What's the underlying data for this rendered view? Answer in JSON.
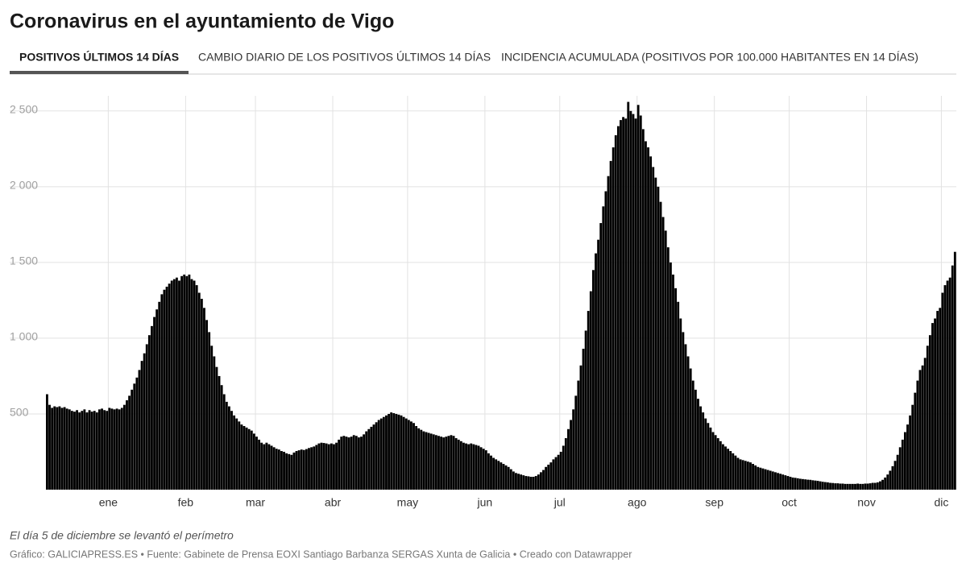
{
  "tabs": [
    "POSITIVOS ÚLTIMOS 14 DÍAS",
    "CAMBIO DIARIO DE LOS POSITIVOS ÚLTIMOS 14 DÍAS",
    "INCIDENCIA ACUMULADA (POSITIVOS POR 100.000 HABITANTES EN 14 DÍAS)"
  ],
  "chart_data": {
    "type": "bar",
    "title": "Coronavirus en el ayuntamiento de Vigo",
    "note": "El día 5 de diciembre se levantó el perímetro",
    "source": "Gráfico: GALICIAPRESS.ES • Fuente: Gabinete de Prensa EOXI Santiago Barbanza SERGAS Xunta de Galicia • Creado con Datawrapper",
    "color": "#000000",
    "grid": true,
    "ylim": [
      0,
      2600
    ],
    "yticks": [
      {
        "value": 500,
        "label": "500"
      },
      {
        "value": 1000,
        "label": "1 000"
      },
      {
        "value": 1500,
        "label": "1 500"
      },
      {
        "value": 2000,
        "label": "2 000"
      },
      {
        "value": 2500,
        "label": "2 500"
      }
    ],
    "categories": [
      null,
      null,
      null,
      null,
      null,
      null,
      null,
      null,
      null,
      null,
      null,
      null,
      null,
      null,
      null,
      null,
      null,
      null,
      null,
      null,
      null,
      null,
      null,
      null,
      null,
      "ene",
      null,
      null,
      null,
      null,
      null,
      null,
      null,
      null,
      null,
      null,
      null,
      null,
      null,
      null,
      null,
      null,
      null,
      null,
      null,
      null,
      null,
      null,
      null,
      null,
      null,
      null,
      null,
      null,
      null,
      null,
      "feb",
      null,
      null,
      null,
      null,
      null,
      null,
      null,
      null,
      null,
      null,
      null,
      null,
      null,
      null,
      null,
      null,
      null,
      null,
      null,
      null,
      null,
      null,
      null,
      null,
      null,
      null,
      null,
      "mar",
      null,
      null,
      null,
      null,
      null,
      null,
      null,
      null,
      null,
      null,
      null,
      null,
      null,
      null,
      null,
      null,
      null,
      null,
      null,
      null,
      null,
      null,
      null,
      null,
      null,
      null,
      null,
      null,
      null,
      null,
      "abr",
      null,
      null,
      null,
      null,
      null,
      null,
      null,
      null,
      null,
      null,
      null,
      null,
      null,
      null,
      null,
      null,
      null,
      null,
      null,
      null,
      null,
      null,
      null,
      null,
      null,
      null,
      null,
      null,
      null,
      "may",
      null,
      null,
      null,
      null,
      null,
      null,
      null,
      null,
      null,
      null,
      null,
      null,
      null,
      null,
      null,
      null,
      null,
      null,
      null,
      null,
      null,
      null,
      null,
      null,
      null,
      null,
      null,
      null,
      null,
      null,
      "jun",
      null,
      null,
      null,
      null,
      null,
      null,
      null,
      null,
      null,
      null,
      null,
      null,
      null,
      null,
      null,
      null,
      null,
      null,
      null,
      null,
      null,
      null,
      null,
      null,
      null,
      null,
      null,
      null,
      null,
      "jul",
      null,
      null,
      null,
      null,
      null,
      null,
      null,
      null,
      null,
      null,
      null,
      null,
      null,
      null,
      null,
      null,
      null,
      null,
      null,
      null,
      null,
      null,
      null,
      null,
      null,
      null,
      null,
      null,
      null,
      null,
      "ago",
      null,
      null,
      null,
      null,
      null,
      null,
      null,
      null,
      null,
      null,
      null,
      null,
      null,
      null,
      null,
      null,
      null,
      null,
      null,
      null,
      null,
      null,
      null,
      null,
      null,
      null,
      null,
      null,
      null,
      null,
      "sep",
      null,
      null,
      null,
      null,
      null,
      null,
      null,
      null,
      null,
      null,
      null,
      null,
      null,
      null,
      null,
      null,
      null,
      null,
      null,
      null,
      null,
      null,
      null,
      null,
      null,
      null,
      null,
      null,
      null,
      "oct",
      null,
      null,
      null,
      null,
      null,
      null,
      null,
      null,
      null,
      null,
      null,
      null,
      null,
      null,
      null,
      null,
      null,
      null,
      null,
      null,
      null,
      null,
      null,
      null,
      null,
      null,
      null,
      null,
      null,
      null,
      "nov",
      null,
      null,
      null,
      null,
      null,
      null,
      null,
      null,
      null,
      null,
      null,
      null,
      null,
      null,
      null,
      null,
      null,
      null,
      null,
      null,
      null,
      null,
      null,
      null,
      null,
      null,
      null,
      null,
      null,
      "dic",
      null,
      null,
      null,
      null,
      null
    ],
    "values": [
      630,
      560,
      540,
      550,
      545,
      550,
      540,
      545,
      535,
      530,
      520,
      515,
      525,
      510,
      520,
      530,
      510,
      525,
      515,
      520,
      510,
      530,
      535,
      525,
      520,
      540,
      535,
      530,
      535,
      530,
      540,
      560,
      590,
      620,
      660,
      700,
      740,
      790,
      850,
      900,
      960,
      1020,
      1080,
      1140,
      1190,
      1240,
      1290,
      1320,
      1340,
      1360,
      1380,
      1390,
      1400,
      1380,
      1410,
      1420,
      1410,
      1420,
      1390,
      1380,
      1350,
      1300,
      1260,
      1200,
      1120,
      1040,
      950,
      880,
      810,
      750,
      690,
      630,
      580,
      550,
      520,
      490,
      470,
      450,
      430,
      420,
      410,
      400,
      390,
      370,
      350,
      330,
      310,
      300,
      310,
      300,
      290,
      280,
      270,
      265,
      255,
      250,
      240,
      235,
      230,
      245,
      255,
      260,
      265,
      262,
      268,
      275,
      280,
      285,
      295,
      305,
      310,
      308,
      305,
      300,
      305,
      300,
      310,
      330,
      350,
      355,
      350,
      345,
      350,
      360,
      355,
      345,
      350,
      365,
      385,
      400,
      415,
      430,
      445,
      460,
      470,
      480,
      490,
      500,
      510,
      505,
      500,
      495,
      490,
      480,
      470,
      460,
      450,
      440,
      420,
      405,
      395,
      385,
      380,
      375,
      370,
      365,
      360,
      355,
      350,
      345,
      350,
      355,
      360,
      355,
      340,
      330,
      320,
      310,
      305,
      300,
      305,
      300,
      295,
      290,
      280,
      270,
      260,
      240,
      225,
      210,
      200,
      190,
      180,
      170,
      160,
      150,
      135,
      120,
      110,
      105,
      100,
      95,
      90,
      88,
      85,
      85,
      90,
      100,
      115,
      130,
      150,
      165,
      180,
      200,
      215,
      230,
      250,
      290,
      340,
      400,
      460,
      530,
      620,
      720,
      820,
      930,
      1050,
      1180,
      1310,
      1450,
      1560,
      1650,
      1760,
      1870,
      1970,
      2070,
      2170,
      2260,
      2340,
      2400,
      2440,
      2460,
      2450,
      2560,
      2500,
      2480,
      2450,
      2540,
      2470,
      2380,
      2300,
      2260,
      2200,
      2130,
      2060,
      2000,
      1900,
      1800,
      1710,
      1600,
      1500,
      1420,
      1330,
      1240,
      1130,
      1040,
      960,
      880,
      800,
      720,
      660,
      600,
      550,
      510,
      470,
      440,
      410,
      380,
      360,
      340,
      320,
      300,
      285,
      270,
      255,
      240,
      225,
      210,
      200,
      195,
      190,
      185,
      180,
      170,
      160,
      150,
      145,
      140,
      135,
      130,
      125,
      120,
      115,
      110,
      105,
      100,
      95,
      90,
      85,
      80,
      78,
      75,
      72,
      70,
      68,
      66,
      65,
      62,
      60,
      58,
      55,
      52,
      50,
      48,
      45,
      44,
      42,
      42,
      40,
      40,
      38,
      38,
      38,
      38,
      38,
      40,
      38,
      38,
      40,
      40,
      42,
      45,
      45,
      48,
      55,
      65,
      80,
      100,
      125,
      155,
      190,
      230,
      280,
      330,
      380,
      430,
      490,
      560,
      640,
      720,
      790,
      820,
      870,
      950,
      1020,
      1100,
      1130,
      1180,
      1200,
      1300,
      1350,
      1380,
      1400,
      1480,
      1570
    ]
  }
}
